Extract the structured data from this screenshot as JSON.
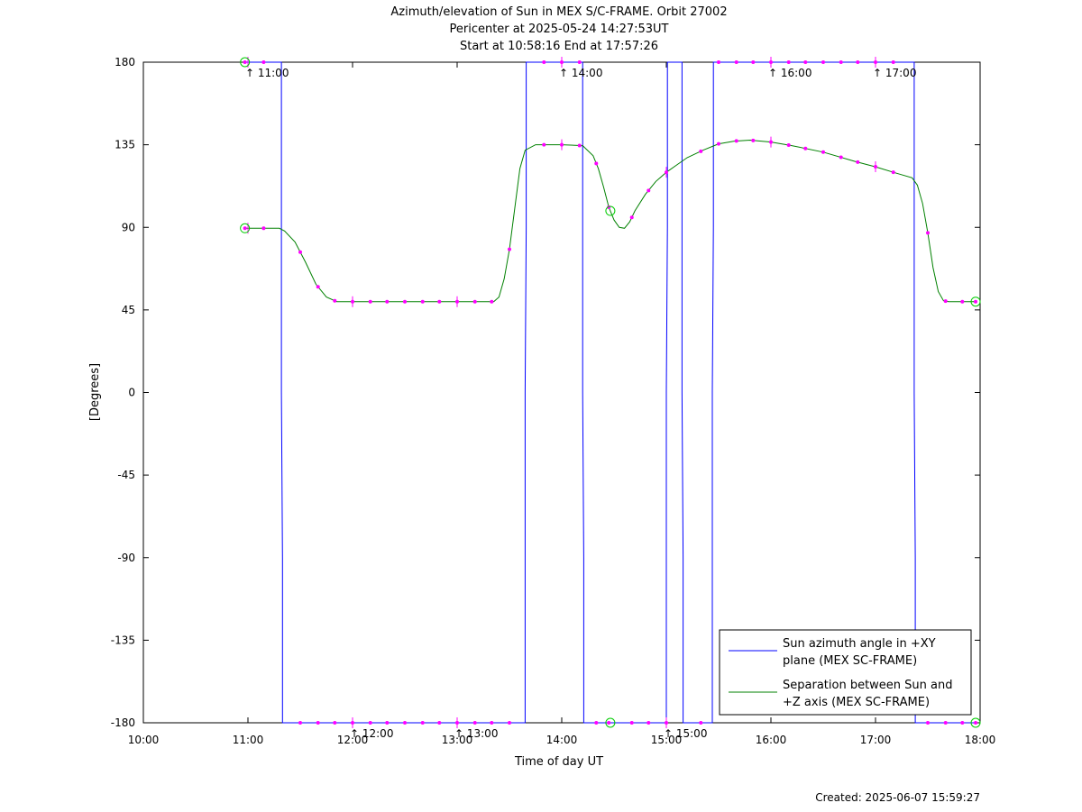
{
  "chart_data": {
    "type": "line",
    "title_lines": [
      "Azimuth/elevation of Sun in MEX S/C-FRAME.  Orbit 27002",
      "Pericenter at 2025-05-24 14:27:53UT",
      "Start at 10:58:16 End at 17:57:26"
    ],
    "xlabel": "Time of day UT",
    "ylabel": "[Degrees]",
    "xlim": [
      10.0,
      18.0
    ],
    "ylim": [
      -180,
      180
    ],
    "x_ticks": [
      {
        "v": 10,
        "label": "10:00"
      },
      {
        "v": 11,
        "label": "11:00"
      },
      {
        "v": 12,
        "label": "12:00"
      },
      {
        "v": 13,
        "label": "13:00"
      },
      {
        "v": 14,
        "label": "14:00"
      },
      {
        "v": 15,
        "label": "15:00"
      },
      {
        "v": 16,
        "label": "16:00"
      },
      {
        "v": 17,
        "label": "17:00"
      },
      {
        "v": 18,
        "label": "18:00"
      }
    ],
    "y_ticks": [
      {
        "v": 180,
        "label": "180"
      },
      {
        "v": 135,
        "label": "135"
      },
      {
        "v": 90,
        "label": "90"
      },
      {
        "v": 45,
        "label": "45"
      },
      {
        "v": 0,
        "label": "0"
      },
      {
        "v": -45,
        "label": "-45"
      },
      {
        "v": -90,
        "label": "-90"
      },
      {
        "v": -135,
        "label": "-135"
      },
      {
        "v": -180,
        "label": "-180"
      }
    ],
    "grid": false,
    "legend_position": "bottom-right",
    "series": [
      {
        "name": "Sun azimuth angle in +XY plane (MEX SC-FRAME)",
        "legend_lines": [
          "Sun azimuth angle in +XY",
          "plane (MEX SC-FRAME)"
        ],
        "color": "#0000ff",
        "x": [
          10.971,
          11.32,
          11.32,
          11.33,
          11.33,
          13.65,
          13.65,
          13.66,
          13.66,
          14.2,
          14.2,
          14.21,
          14.21,
          15.0,
          15.0,
          15.01,
          15.01,
          15.15,
          15.15,
          15.16,
          15.16,
          15.44,
          15.44,
          15.45,
          15.45,
          17.37,
          17.37,
          17.38,
          17.38,
          17.957
        ],
        "y": [
          180,
          180,
          0,
          -90,
          -180,
          -180,
          0,
          90,
          180,
          180,
          0,
          -90,
          -180,
          -180,
          0,
          90,
          180,
          180,
          0,
          -90,
          -180,
          -180,
          0,
          90,
          180,
          180,
          0,
          -90,
          -180,
          -180
        ]
      },
      {
        "name": "Separation between Sun and +Z axis (MEX SC-FRAME)",
        "legend_lines": [
          "Separation between Sun and",
          "+Z axis (MEX SC-FRAME)"
        ],
        "color": "#008000",
        "x": [
          10.971,
          11.1,
          11.3,
          11.35,
          11.45,
          11.55,
          11.65,
          11.75,
          11.85,
          12.0,
          12.5,
          13.0,
          13.35,
          13.4,
          13.45,
          13.5,
          13.55,
          13.6,
          13.65,
          13.75,
          14.0,
          14.2,
          14.3,
          14.35,
          14.4,
          14.45,
          14.5,
          14.55,
          14.6,
          14.65,
          14.7,
          14.8,
          14.9,
          15.0,
          15.1,
          15.2,
          15.35,
          15.5,
          15.65,
          15.8,
          16.0,
          16.2,
          16.5,
          16.8,
          17.0,
          17.2,
          17.35,
          17.4,
          17.45,
          17.5,
          17.55,
          17.6,
          17.65,
          17.7,
          17.8,
          17.957
        ],
        "y": [
          89.5,
          89.5,
          89.5,
          88.0,
          82.0,
          71.0,
          59.0,
          52.0,
          49.5,
          49.5,
          49.5,
          49.5,
          49.5,
          52.0,
          62.0,
          78.0,
          100.0,
          122.0,
          132.0,
          135.0,
          135.0,
          134.5,
          129.0,
          122.0,
          112.0,
          101.0,
          94.0,
          90.0,
          89.5,
          93.0,
          99.0,
          108.0,
          115.0,
          120.0,
          124.0,
          128.0,
          132.0,
          135.5,
          137.0,
          137.5,
          136.5,
          134.5,
          131.0,
          126.0,
          123.0,
          119.5,
          117.0,
          113.0,
          103.0,
          87.0,
          68.0,
          55.0,
          50.0,
          49.5,
          49.5,
          49.5
        ]
      }
    ],
    "marker_color": "#ff00ff",
    "start_end_marker_color": "#00cc00",
    "azimuth_markers": [
      10.971,
      11.15,
      11.5,
      11.67,
      11.83,
      12.0,
      12.17,
      12.33,
      12.5,
      12.67,
      12.83,
      13.0,
      13.17,
      13.33,
      13.5,
      13.83,
      14.0,
      14.17,
      14.33,
      14.45,
      14.67,
      14.83,
      15.0,
      15.33,
      15.5,
      15.67,
      15.83,
      16.0,
      16.17,
      16.33,
      16.5,
      16.67,
      16.83,
      17.0,
      17.17,
      17.5,
      17.67,
      17.83,
      17.957
    ],
    "azimuth_marker_side": [
      180,
      180,
      -180,
      -180,
      -180,
      -180,
      -180,
      -180,
      -180,
      -180,
      -180,
      -180,
      -180,
      -180,
      -180,
      180,
      180,
      180,
      -180,
      -180,
      -180,
      -180,
      -180,
      -180,
      180,
      180,
      180,
      180,
      180,
      180,
      180,
      180,
      180,
      180,
      180,
      -180,
      -180,
      -180,
      -180
    ],
    "hour_tick_labels": [
      {
        "v": 11.0,
        "label": "11:00",
        "side": 180
      },
      {
        "v": 12.0,
        "label": "12:00",
        "side": -180
      },
      {
        "v": 13.0,
        "label": "13:00",
        "side": -180
      },
      {
        "v": 14.0,
        "label": "14:00",
        "side": 180
      },
      {
        "v": 15.0,
        "label": "15:00",
        "side": -180
      },
      {
        "v": 16.0,
        "label": "16:00",
        "side": 180
      },
      {
        "v": 17.0,
        "label": "17:00",
        "side": 180
      }
    ],
    "pericenter_time": 14.4647
  },
  "footer": {
    "created": "Created: 2025-06-07 15:59:27"
  }
}
